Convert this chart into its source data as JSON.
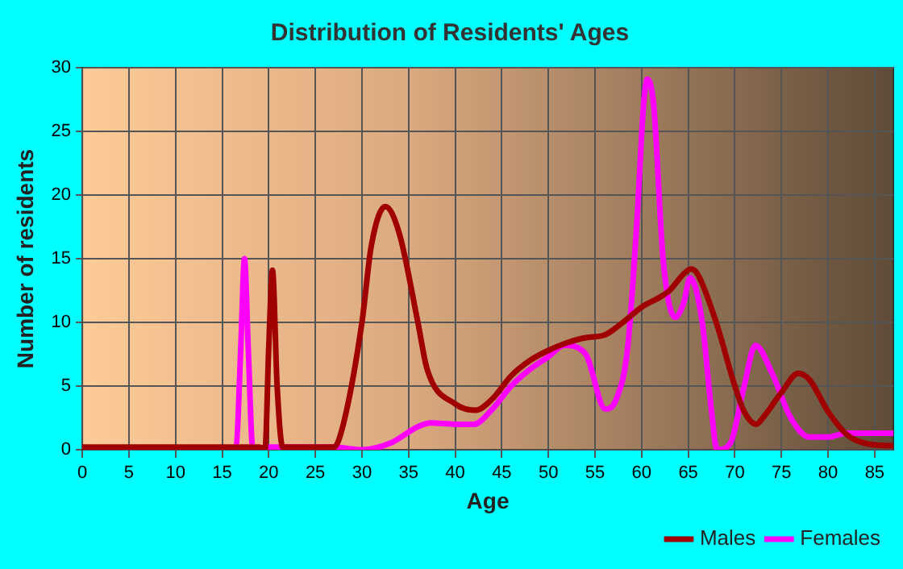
{
  "chart_data": {
    "type": "line",
    "title": "Distribution of Residents' Ages",
    "xlabel": "Age",
    "ylabel": "Number of residents",
    "xlim": [
      0,
      87
    ],
    "xticks": [
      0,
      5,
      10,
      15,
      20,
      25,
      30,
      35,
      40,
      45,
      50,
      55,
      60,
      65,
      70,
      75,
      80,
      85
    ],
    "ylim": [
      0,
      30
    ],
    "yticks": [
      0,
      5,
      10,
      15,
      20,
      25,
      30
    ],
    "grid": true,
    "legend": "bottom right",
    "marker": "none",
    "line_style": "solid",
    "series": [
      {
        "name": "Males",
        "color": "#a00000",
        "x": [
          0,
          16,
          19,
          19.6,
          20,
          20.4,
          20.9,
          21.5,
          27,
          28,
          30,
          31,
          32.5,
          34,
          36,
          37,
          40,
          42.2,
          44,
          46,
          48,
          50,
          52,
          54,
          56,
          58,
          60,
          62,
          63,
          64.5,
          65.3,
          66,
          68,
          70,
          71,
          72.3,
          73,
          75,
          76.8,
          78,
          80,
          82,
          84,
          87
        ],
        "values": [
          0.2,
          0.2,
          0.2,
          0,
          8,
          14.1,
          5,
          0.2,
          0.2,
          2,
          10,
          16,
          19.1,
          17,
          10,
          6.3,
          3.6,
          3.1,
          4,
          5.8,
          7,
          7.8,
          8.4,
          8.8,
          9,
          10,
          11.2,
          12,
          12.5,
          13.8,
          14.2,
          13.8,
          10,
          5,
          3,
          2,
          2.5,
          4.5,
          6,
          5.5,
          3,
          1.2,
          0.5,
          0.3
        ]
      },
      {
        "name": "Females",
        "color": "#ff00ff",
        "x": [
          0,
          16,
          16.5,
          17,
          17.4,
          17.8,
          18.3,
          20,
          27,
          30,
          33,
          36,
          37.4,
          40,
          42,
          44,
          46,
          48,
          50,
          51.7,
          54,
          56.1,
          57.3,
          58.5,
          59.5,
          60.2,
          60.6,
          61.3,
          62.3,
          63.6,
          64.5,
          65.2,
          66.5,
          67.5,
          68.1,
          69.5,
          71,
          72.2,
          74,
          76,
          78,
          80,
          82,
          84,
          87
        ],
        "values": [
          0,
          0,
          0.2,
          8,
          15,
          8,
          0,
          0.2,
          0.2,
          0,
          0.5,
          1.8,
          2.1,
          2,
          2,
          3.2,
          5,
          6.3,
          7.3,
          8.2,
          7.5,
          3.2,
          4,
          8,
          18,
          27,
          29.1,
          27,
          15,
          10.4,
          11.5,
          13.5,
          10,
          3,
          0,
          0.5,
          5,
          8.2,
          6,
          2.5,
          1,
          1,
          1.3,
          1.3,
          1.3
        ]
      }
    ]
  }
}
